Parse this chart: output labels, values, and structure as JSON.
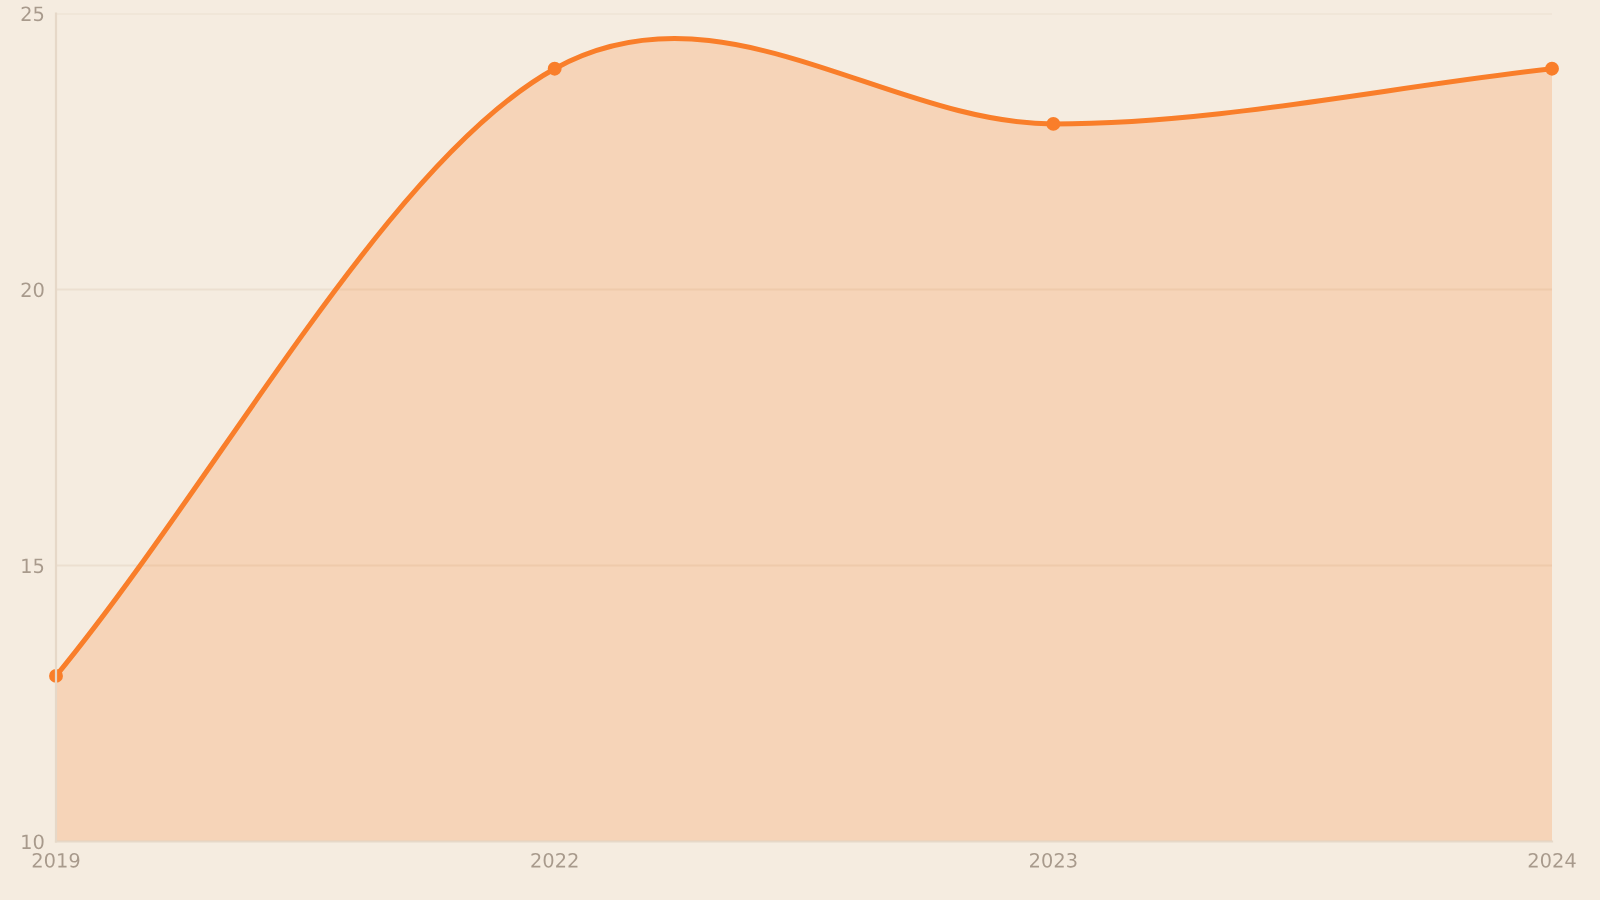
{
  "chart_data": {
    "type": "area",
    "categories": [
      "2019",
      "2022",
      "2023",
      "2024"
    ],
    "series": [
      {
        "color": "#f97e2a",
        "values": [
          13,
          24,
          23,
          24
        ]
      }
    ],
    "ylim": [
      10,
      25
    ],
    "yticks": [
      10,
      15,
      20,
      25
    ],
    "grid": "y",
    "marker": "circle"
  }
}
